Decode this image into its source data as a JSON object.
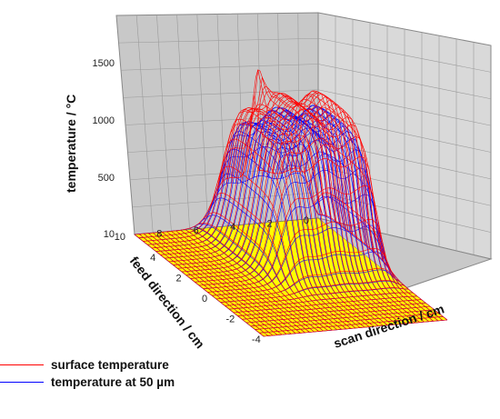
{
  "chart_data": {
    "type": "surface3d",
    "title": "",
    "zlabel": "temperature / °C",
    "xlabel": "scan direction / cm",
    "ylabel": "feed direction / cm",
    "z_ticks": [
      "10",
      "500",
      "1000",
      "1500"
    ],
    "x_ticks": [
      "4",
      "2",
      "0",
      "-2",
      "-4"
    ],
    "y_ticks": [
      "0",
      "2",
      "4",
      "6",
      "8",
      "10"
    ],
    "zlim": [
      10,
      1800
    ],
    "xlim": [
      5,
      -5
    ],
    "ylim": [
      0,
      10
    ],
    "grid": true,
    "legend_position": "bottom-left",
    "series": [
      {
        "name": "surface temperature",
        "color": "#ff0000",
        "peak_ridge_temperature": 1250,
        "max_temperature": 1720
      },
      {
        "name": "temperature at 50 µm",
        "color": "#0000ff",
        "peak_ridge_temperature": 1120
      }
    ],
    "base_color": "#ffff00"
  },
  "legend": {
    "items": [
      {
        "label": "surface temperature",
        "color": "#ff0000"
      },
      {
        "label": "temperature at 50 µm",
        "color": "#0000ff"
      }
    ]
  }
}
